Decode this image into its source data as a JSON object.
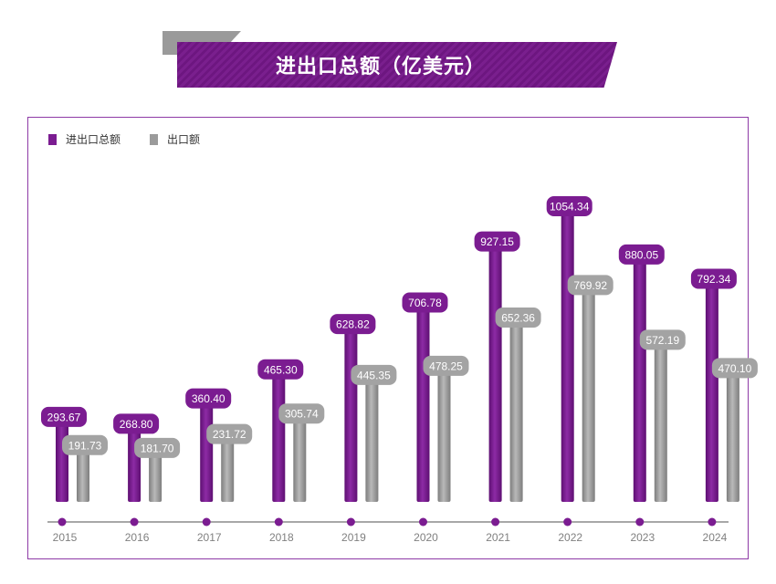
{
  "title": "进出口总额（亿美元）",
  "chart_data": {
    "type": "bar",
    "title": "进出口总额（亿美元）",
    "categories": [
      "2015",
      "2016",
      "2017",
      "2018",
      "2019",
      "2020",
      "2021",
      "2022",
      "2023",
      "2024"
    ],
    "series": [
      {
        "name": "进出口总额",
        "color": "#7b1c91",
        "values": [
          293.67,
          268.8,
          360.4,
          465.3,
          628.82,
          706.78,
          927.15,
          1054.34,
          880.05,
          792.34
        ],
        "labels": [
          "293.67",
          "268.80",
          "360.40",
          "465.30",
          "628.82",
          "706.78",
          "927.15",
          "1054.34",
          "880.05",
          "792.34"
        ]
      },
      {
        "name": "出口额",
        "color": "#9b9b9b",
        "values": [
          191.73,
          181.7,
          231.72,
          305.74,
          445.35,
          478.25,
          652.36,
          769.92,
          572.19,
          470.1
        ],
        "labels": [
          "191.73",
          "181.70",
          "231.72",
          "305.74",
          "445.35",
          "478.25",
          "652.36",
          "769.92",
          "572.19",
          "470.10"
        ]
      }
    ],
    "legend_position": "top-left",
    "grid": false
  }
}
